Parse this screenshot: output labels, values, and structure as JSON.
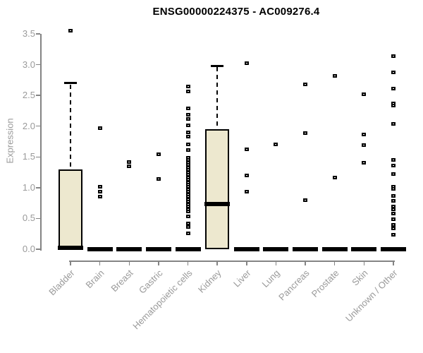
{
  "chart_data": {
    "type": "boxplot",
    "title": "ENSG00000224375 - AC009276.4",
    "ylabel": "Expression",
    "ylim": [
      0,
      3.5
    ],
    "yticks": [
      "0.0",
      "0.5",
      "1.0",
      "1.5",
      "2.0",
      "2.5",
      "3.0",
      "3.5"
    ],
    "grid": false,
    "legend": "none",
    "box_fill_color": "#EDE8CF",
    "box_border_color": "#000000",
    "axis_color": "#848484",
    "tick_label_color": "#9a9a9a",
    "categories": [
      {
        "label": "Bladder",
        "box": {
          "low": 0,
          "q1": 0,
          "median": 0.02,
          "q3": 1.3,
          "high": 2.7
        },
        "outliers": [
          3.55
        ]
      },
      {
        "label": "Brain",
        "box": {
          "low": 0,
          "q1": 0,
          "median": 0,
          "q3": 0,
          "high": 0
        },
        "outliers": [
          1.97,
          1.02,
          0.94,
          0.86
        ]
      },
      {
        "label": "Breast",
        "box": {
          "low": 0,
          "q1": 0,
          "median": 0,
          "q3": 0,
          "high": 0
        },
        "outliers": [
          1.42,
          1.35
        ]
      },
      {
        "label": "Gastric",
        "box": {
          "low": 0,
          "q1": 0,
          "median": 0,
          "q3": 0,
          "high": 0
        },
        "outliers": [
          1.54,
          1.14
        ]
      },
      {
        "label": "Hematopoietic cells",
        "box": {
          "low": 0,
          "q1": 0,
          "median": 0,
          "q3": 0,
          "high": 0
        },
        "outliers": [
          2.65,
          2.57,
          2.29,
          2.19,
          2.12,
          2.01,
          1.9,
          1.83,
          1.7,
          1.61,
          1.49,
          1.45,
          1.41,
          1.37,
          1.33,
          1.29,
          1.25,
          1.21,
          1.17,
          1.13,
          1.09,
          1.05,
          1.01,
          0.97,
          0.93,
          0.89,
          0.85,
          0.81,
          0.77,
          0.73,
          0.69,
          0.65,
          0.61,
          0.53,
          0.42,
          0.36,
          0.26
        ]
      },
      {
        "label": "Kidney",
        "box": {
          "low": 0,
          "q1": 0,
          "median": 0.73,
          "q3": 1.95,
          "high": 2.98
        },
        "outliers": []
      },
      {
        "label": "Liver",
        "box": {
          "low": 0,
          "q1": 0,
          "median": 0,
          "q3": 0,
          "high": 0
        },
        "outliers": [
          3.02,
          1.62,
          1.2,
          0.93
        ]
      },
      {
        "label": "Lung",
        "box": {
          "low": 0,
          "q1": 0,
          "median": 0,
          "q3": 0,
          "high": 0
        },
        "outliers": [
          1.7
        ]
      },
      {
        "label": "Pancreas",
        "box": {
          "low": 0,
          "q1": 0,
          "median": 0,
          "q3": 0,
          "high": 0
        },
        "outliers": [
          2.68,
          1.89,
          0.8
        ]
      },
      {
        "label": "Prostate",
        "box": {
          "low": 0,
          "q1": 0,
          "median": 0,
          "q3": 0,
          "high": 0
        },
        "outliers": [
          2.82,
          1.16
        ]
      },
      {
        "label": "Skin",
        "box": {
          "low": 0,
          "q1": 0,
          "median": 0,
          "q3": 0,
          "high": 0
        },
        "outliers": [
          2.52,
          1.86,
          1.69,
          1.41
        ]
      },
      {
        "label": "Unknown / Other",
        "box": {
          "low": 0,
          "q1": 0,
          "median": 0,
          "q3": 0,
          "high": 0
        },
        "outliers": [
          3.14,
          2.88,
          2.61,
          2.37,
          2.33,
          2.04,
          1.45,
          1.36,
          1.22,
          1.01,
          0.98,
          0.87,
          0.79,
          0.7,
          0.65,
          0.58,
          0.49,
          0.4,
          0.34,
          0.23
        ]
      }
    ]
  }
}
